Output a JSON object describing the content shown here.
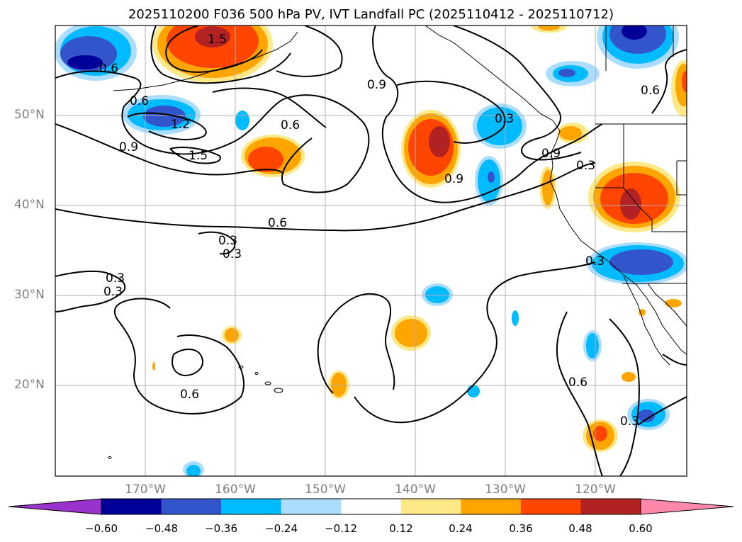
{
  "title": "2025110200 F036 500 hPa PV, IVT Landfall PC (2025110412 - 2025110712)",
  "lat_labels": [
    "50°N",
    "40°N",
    "30°N",
    "20°N"
  ],
  "lon_labels": [
    "170°W",
    "160°W",
    "150°W",
    "140°W",
    "130°W",
    "120°W"
  ],
  "contour_labels": [
    "1.5",
    "0.6",
    "0.6",
    "0.9",
    "0.6",
    "1.2",
    "0.9",
    "1.5",
    "0.6",
    "0.3",
    "0.9",
    "0.9",
    "0.3",
    "0.6",
    "0.6",
    "0.3",
    "0.3",
    "0.3",
    "0.6",
    "0.3",
    "0.3",
    "0.3"
  ],
  "colorbar": {
    "ticks": [
      "−0.60",
      "−0.48",
      "−0.36",
      "−0.24",
      "−0.12",
      "0.12",
      "0.24",
      "0.36",
      "0.48",
      "0.60"
    ],
    "colors": [
      "#9933cc",
      "#000099",
      "#3355cc",
      "#00bbff",
      "#aaddff",
      "#ffffff",
      "#ffe888",
      "#ffa500",
      "#ff4500",
      "#b22222",
      "#ff88aa"
    ]
  },
  "chart_data": {
    "type": "map",
    "title": "2025110200 F036 500 hPa PV, IVT Landfall PC (2025110412 - 2025110712)",
    "x_axis": {
      "range": [
        -180,
        -110
      ],
      "ticks": [
        -170,
        -160,
        -150,
        -140,
        -130,
        -120
      ]
    },
    "y_axis": {
      "range": [
        10,
        60
      ],
      "ticks": [
        20,
        30,
        40,
        50
      ]
    },
    "contour_levels": [
      0.3,
      0.6,
      0.9,
      1.2,
      1.5
    ],
    "fill_levels": [
      -0.6,
      -0.48,
      -0.36,
      -0.24,
      -0.12,
      0.12,
      0.24,
      0.36,
      0.48,
      0.6
    ]
  }
}
